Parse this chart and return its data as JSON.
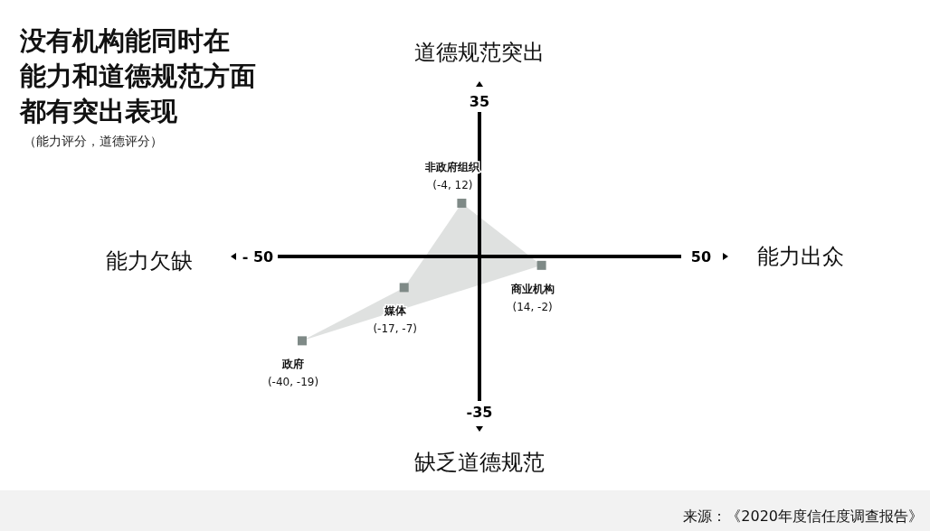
{
  "chart_data": {
    "type": "scatter",
    "title": "没有机构能同时在能力和道德规范方面都有突出表现",
    "subtitle": "（能力评分，道德评分）",
    "xlim": [
      -50,
      50
    ],
    "ylim": [
      -35,
      35
    ],
    "xticks": [
      {
        "value": -50,
        "label": "- 50"
      },
      50
    ],
    "yticks": [
      -35,
      35
    ],
    "marker": "square",
    "grid": false,
    "series": [
      {
        "name": "政府",
        "color": "#7f8a87",
        "x": [
          -40
        ],
        "values": [
          -19
        ],
        "value_labels": [
          "(-40, -19)"
        ]
      },
      {
        "name": "媒体",
        "color": "#7f8a87",
        "x": [
          -17
        ],
        "values": [
          -7
        ],
        "value_labels": [
          "(-17, -7)"
        ]
      },
      {
        "name": "非政府组织",
        "color": "#7f8a87",
        "x": [
          -4
        ],
        "values": [
          12
        ],
        "value_labels": [
          "(-4, 12)"
        ]
      },
      {
        "name": "商业机构",
        "color": "#7f8a87",
        "x": [
          14
        ],
        "values": [
          -2
        ],
        "value_labels": [
          "(14, -2)"
        ]
      }
    ],
    "annotations": [
      "道德规范突出",
      "缺乏道德规范",
      "能力欠缺",
      "能力出众",
      "来源：《2020年度信任度调查报告》"
    ]
  }
}
